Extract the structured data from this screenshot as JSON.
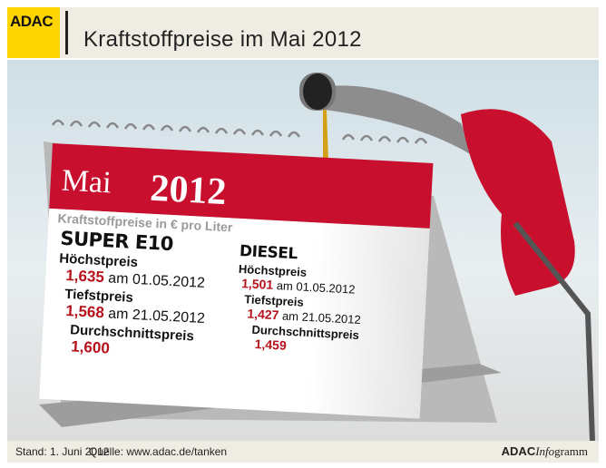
{
  "header": {
    "logo": "ADAC",
    "title": "Kraftstoffpreise im Mai 2012"
  },
  "calendar": {
    "month": "Mai",
    "year": "2012",
    "subtitle": "Kraftstoffpreise in € pro Liter",
    "super": {
      "name": "SUPER E10",
      "max_label": "Höchstpreis",
      "max_value": "1,635",
      "max_date": "am 01.05.2012",
      "min_label": "Tiefstpreis",
      "min_value": "1,568",
      "min_date": "am 21.05.2012",
      "avg_label": "Durchschnittspreis",
      "avg_value": "1,600"
    },
    "diesel": {
      "name": "DIESEL",
      "max_label": "Höchstpreis",
      "max_value": "1,501",
      "max_date": "am 01.05.2012",
      "min_label": "Tiefstpreis",
      "min_value": "1,427",
      "min_date": "am 21.05.2012",
      "avg_label": "Durchschnittspreis",
      "avg_value": "1,459"
    }
  },
  "footer": {
    "stand": "Stand: 1. Juni 2012",
    "source": "Quelle: www.adac.de/tanken",
    "brand_bold": "ADAC",
    "brand_italic": "Info",
    "brand_rest": "gramm"
  },
  "colors": {
    "brand_yellow": "#ffd500",
    "accent_red": "#c8102e"
  },
  "icons": [
    "fuel-nozzle-icon",
    "fuel-drop-icon",
    "calendar-rings-icon"
  ]
}
